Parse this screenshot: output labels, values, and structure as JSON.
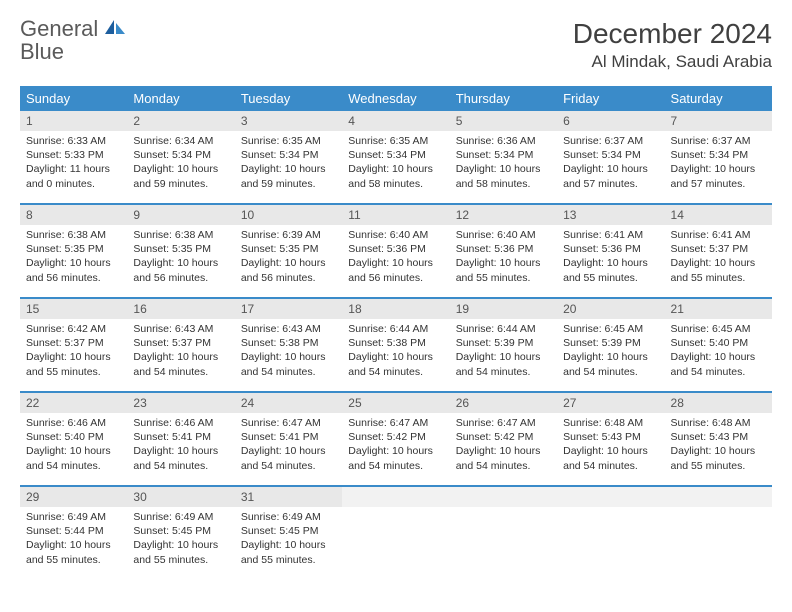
{
  "brand": {
    "word1": "General",
    "word2": "Blue"
  },
  "title": "December 2024",
  "location": "Al Mindak, Saudi Arabia",
  "colors": {
    "header_bg": "#3a8bc9",
    "header_text": "#ffffff",
    "daynum_bg": "#e8e8e8",
    "daynum_text": "#555555",
    "body_text": "#333333",
    "page_bg": "#ffffff",
    "brand_gray": "#5a5a5a",
    "brand_blue": "#3a7fc0"
  },
  "daysOfWeek": [
    "Sunday",
    "Monday",
    "Tuesday",
    "Wednesday",
    "Thursday",
    "Friday",
    "Saturday"
  ],
  "weeks": [
    [
      {
        "n": "1",
        "sr": "6:33 AM",
        "ss": "5:33 PM",
        "dl": "11 hours and 0 minutes."
      },
      {
        "n": "2",
        "sr": "6:34 AM",
        "ss": "5:34 PM",
        "dl": "10 hours and 59 minutes."
      },
      {
        "n": "3",
        "sr": "6:35 AM",
        "ss": "5:34 PM",
        "dl": "10 hours and 59 minutes."
      },
      {
        "n": "4",
        "sr": "6:35 AM",
        "ss": "5:34 PM",
        "dl": "10 hours and 58 minutes."
      },
      {
        "n": "5",
        "sr": "6:36 AM",
        "ss": "5:34 PM",
        "dl": "10 hours and 58 minutes."
      },
      {
        "n": "6",
        "sr": "6:37 AM",
        "ss": "5:34 PM",
        "dl": "10 hours and 57 minutes."
      },
      {
        "n": "7",
        "sr": "6:37 AM",
        "ss": "5:34 PM",
        "dl": "10 hours and 57 minutes."
      }
    ],
    [
      {
        "n": "8",
        "sr": "6:38 AM",
        "ss": "5:35 PM",
        "dl": "10 hours and 56 minutes."
      },
      {
        "n": "9",
        "sr": "6:38 AM",
        "ss": "5:35 PM",
        "dl": "10 hours and 56 minutes."
      },
      {
        "n": "10",
        "sr": "6:39 AM",
        "ss": "5:35 PM",
        "dl": "10 hours and 56 minutes."
      },
      {
        "n": "11",
        "sr": "6:40 AM",
        "ss": "5:36 PM",
        "dl": "10 hours and 56 minutes."
      },
      {
        "n": "12",
        "sr": "6:40 AM",
        "ss": "5:36 PM",
        "dl": "10 hours and 55 minutes."
      },
      {
        "n": "13",
        "sr": "6:41 AM",
        "ss": "5:36 PM",
        "dl": "10 hours and 55 minutes."
      },
      {
        "n": "14",
        "sr": "6:41 AM",
        "ss": "5:37 PM",
        "dl": "10 hours and 55 minutes."
      }
    ],
    [
      {
        "n": "15",
        "sr": "6:42 AM",
        "ss": "5:37 PM",
        "dl": "10 hours and 55 minutes."
      },
      {
        "n": "16",
        "sr": "6:43 AM",
        "ss": "5:37 PM",
        "dl": "10 hours and 54 minutes."
      },
      {
        "n": "17",
        "sr": "6:43 AM",
        "ss": "5:38 PM",
        "dl": "10 hours and 54 minutes."
      },
      {
        "n": "18",
        "sr": "6:44 AM",
        "ss": "5:38 PM",
        "dl": "10 hours and 54 minutes."
      },
      {
        "n": "19",
        "sr": "6:44 AM",
        "ss": "5:39 PM",
        "dl": "10 hours and 54 minutes."
      },
      {
        "n": "20",
        "sr": "6:45 AM",
        "ss": "5:39 PM",
        "dl": "10 hours and 54 minutes."
      },
      {
        "n": "21",
        "sr": "6:45 AM",
        "ss": "5:40 PM",
        "dl": "10 hours and 54 minutes."
      }
    ],
    [
      {
        "n": "22",
        "sr": "6:46 AM",
        "ss": "5:40 PM",
        "dl": "10 hours and 54 minutes."
      },
      {
        "n": "23",
        "sr": "6:46 AM",
        "ss": "5:41 PM",
        "dl": "10 hours and 54 minutes."
      },
      {
        "n": "24",
        "sr": "6:47 AM",
        "ss": "5:41 PM",
        "dl": "10 hours and 54 minutes."
      },
      {
        "n": "25",
        "sr": "6:47 AM",
        "ss": "5:42 PM",
        "dl": "10 hours and 54 minutes."
      },
      {
        "n": "26",
        "sr": "6:47 AM",
        "ss": "5:42 PM",
        "dl": "10 hours and 54 minutes."
      },
      {
        "n": "27",
        "sr": "6:48 AM",
        "ss": "5:43 PM",
        "dl": "10 hours and 54 minutes."
      },
      {
        "n": "28",
        "sr": "6:48 AM",
        "ss": "5:43 PM",
        "dl": "10 hours and 55 minutes."
      }
    ],
    [
      {
        "n": "29",
        "sr": "6:49 AM",
        "ss": "5:44 PM",
        "dl": "10 hours and 55 minutes."
      },
      {
        "n": "30",
        "sr": "6:49 AM",
        "ss": "5:45 PM",
        "dl": "10 hours and 55 minutes."
      },
      {
        "n": "31",
        "sr": "6:49 AM",
        "ss": "5:45 PM",
        "dl": "10 hours and 55 minutes."
      },
      null,
      null,
      null,
      null
    ]
  ],
  "labels": {
    "sunrise": "Sunrise: ",
    "sunset": "Sunset: ",
    "daylight": "Daylight: "
  }
}
